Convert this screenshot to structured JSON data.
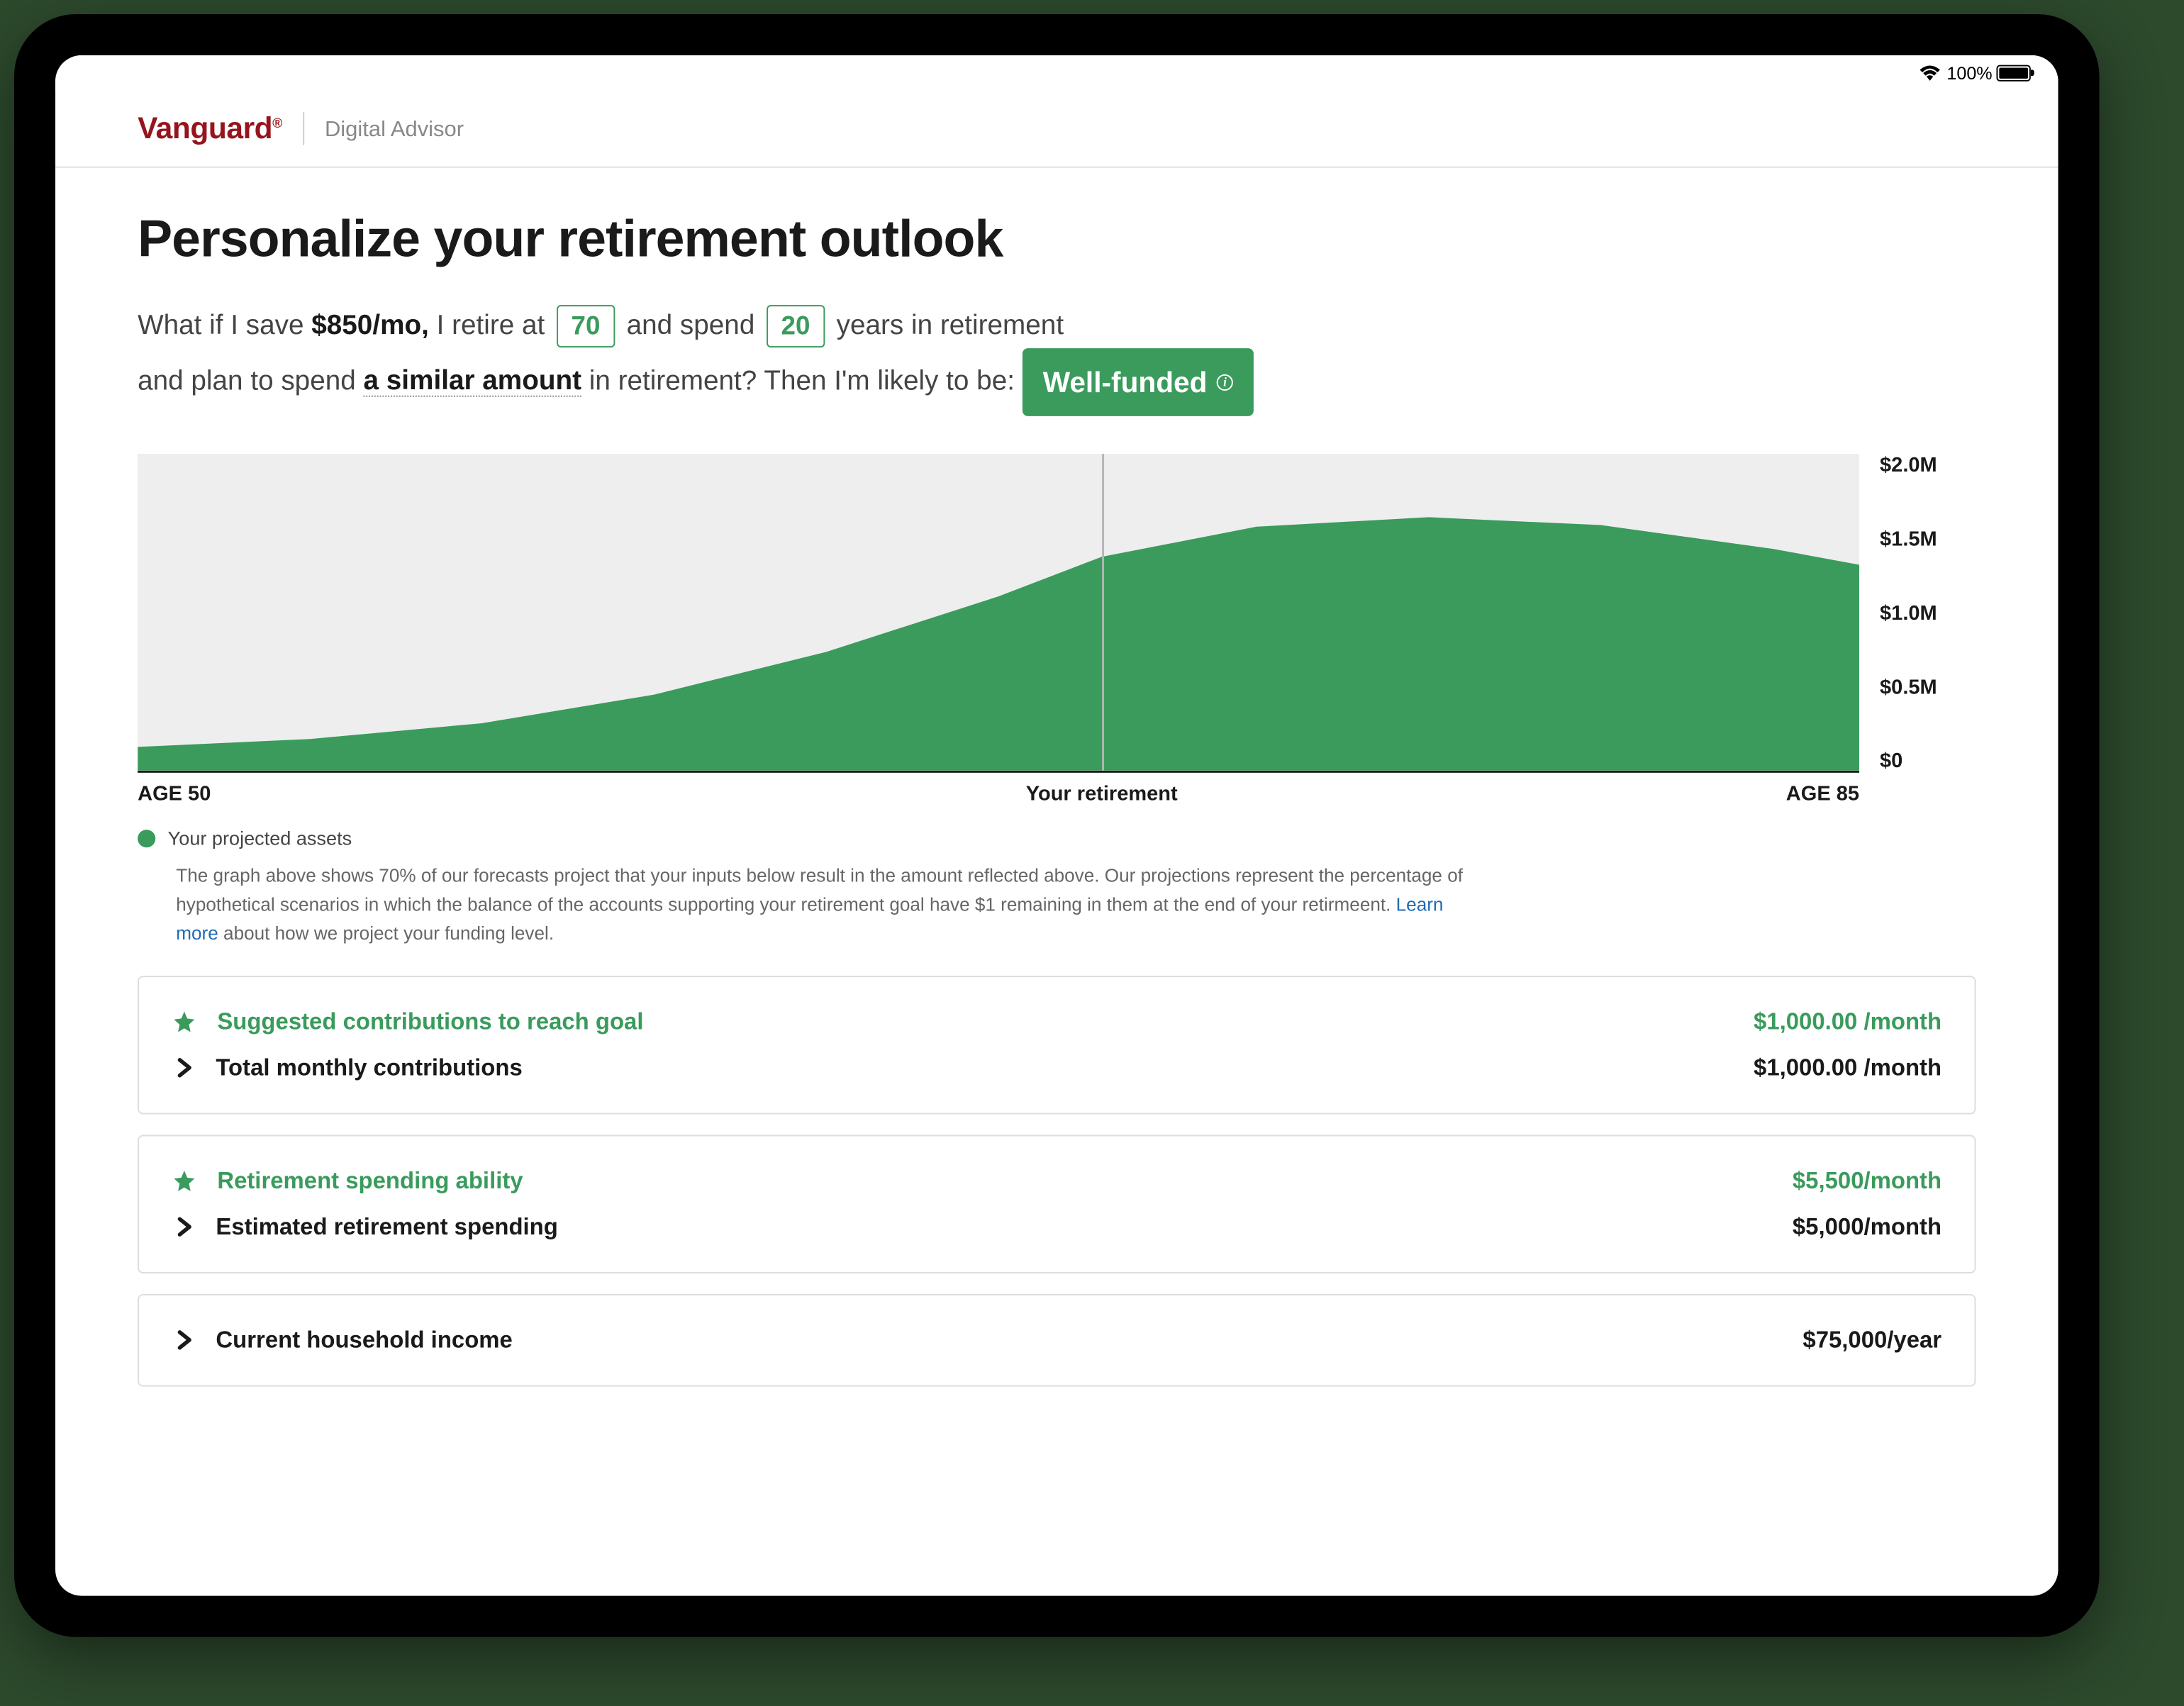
{
  "status_bar": {
    "battery_text": "100%"
  },
  "header": {
    "logo": "Vanguard",
    "product": "Digital Advisor"
  },
  "title": "Personalize your retirement outlook",
  "sentence": {
    "s1": "What if I save ",
    "save_amount": "$850/mo,",
    "s2": " I retire at ",
    "retire_age": "70",
    "s3": " and spend ",
    "years": "20",
    "s4": " years in retirement",
    "s5": "and plan to spend ",
    "spend_link": "a similar amount",
    "s6": " in retirement? Then I'm likely to be: ",
    "status_label": "Well-funded"
  },
  "chart": {
    "type": "area",
    "x_start": 50,
    "x_end": 85,
    "retirement_age": 70,
    "ylim": [
      0,
      2.0
    ],
    "y_ticks": [
      "$2.0M",
      "$1.5M",
      "$1.0M",
      "$0.5M",
      "$0"
    ],
    "fill_color": "#3a9b5c",
    "background_color": "#eeeeee",
    "retire_line_color": "#b5b5b5",
    "retire_line_pct": 56,
    "points": [
      {
        "x": 0,
        "y": 0.15
      },
      {
        "x": 10,
        "y": 0.2
      },
      {
        "x": 20,
        "y": 0.3
      },
      {
        "x": 30,
        "y": 0.48
      },
      {
        "x": 40,
        "y": 0.75
      },
      {
        "x": 50,
        "y": 1.1
      },
      {
        "x": 56,
        "y": 1.35
      },
      {
        "x": 65,
        "y": 1.54
      },
      {
        "x": 75,
        "y": 1.6
      },
      {
        "x": 85,
        "y": 1.55
      },
      {
        "x": 95,
        "y": 1.4
      },
      {
        "x": 100,
        "y": 1.3
      }
    ],
    "x_label_start": "AGE 50",
    "x_label_end": "AGE 85",
    "retire_label": "Your retirement",
    "legend_label": "Your projected assets"
  },
  "disclaimer": {
    "text_before": "The graph above shows 70% of our forecasts project that your inputs below result in the amount reflected above. Our projections represent the percentage of hypothetical scenarios in which the balance of the accounts supporting your retirement goal have $1 remaining in them at the end of your retirmeent. ",
    "link": "Learn more",
    "text_after": " about how we project your funding level."
  },
  "cards": [
    {
      "rows": [
        {
          "icon": "star",
          "label": "Suggested contributions to reach goal",
          "value": "$1,000.00 /month",
          "highlight": true
        },
        {
          "icon": "chevron",
          "label": "Total monthly contributions",
          "value": "$1,000.00 /month",
          "highlight": false
        }
      ]
    },
    {
      "rows": [
        {
          "icon": "star",
          "label": "Retirement spending ability",
          "value": "$5,500/month",
          "highlight": true
        },
        {
          "icon": "chevron",
          "label": "Estimated retirement spending",
          "value": "$5,000/month",
          "highlight": false
        }
      ]
    },
    {
      "rows": [
        {
          "icon": "chevron",
          "label": "Current household income",
          "value": "$75,000/year",
          "highlight": false
        }
      ]
    }
  ]
}
